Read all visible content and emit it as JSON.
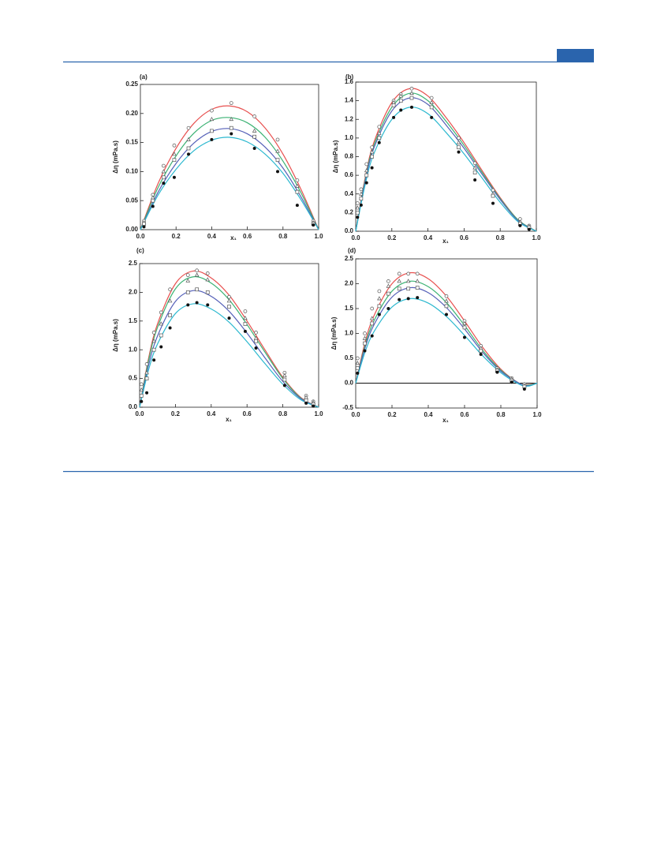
{
  "chart_data": [
    {
      "type": "scatter",
      "title": "(a)",
      "y_label": "Δη (mPa.s)",
      "x_label": "x₁",
      "xlim": [
        0,
        1
      ],
      "xticks": [
        {
          "value": 0,
          "label": "0.0"
        },
        0.2,
        0.4,
        0.6,
        0.8,
        {
          "value": 1,
          "label": "1.0"
        }
      ],
      "ylim": [
        0,
        0.25
      ],
      "yticks": [
        {
          "value": 0,
          "label": "0.00"
        },
        0.05,
        {
          "value": 0.1,
          "label": "0.10"
        },
        0.15,
        {
          "value": 0.2,
          "label": "0.20"
        },
        0.25
      ],
      "zero_line": false,
      "fit_x": [
        0,
        0.1,
        0.2,
        0.3,
        0.4,
        0.5,
        0.6,
        0.7,
        0.8,
        0.9,
        1
      ],
      "series": [
        {
          "color": "#e8504f",
          "marker": "circle-open",
          "x": [
            0.02,
            0.07,
            0.13,
            0.19,
            0.27,
            0.4,
            0.51,
            0.64,
            0.77,
            0.88,
            0.97
          ],
          "values": [
            0.015,
            0.06,
            0.11,
            0.145,
            0.175,
            0.205,
            0.218,
            0.195,
            0.155,
            0.085,
            0.015
          ],
          "fit_values": [
            0,
            0.08,
            0.14,
            0.183,
            0.207,
            0.213,
            0.203,
            0.175,
            0.13,
            0.07,
            0
          ]
        },
        {
          "color": "#3bb273",
          "marker": "triangle-open",
          "x": [
            0.02,
            0.07,
            0.13,
            0.19,
            0.27,
            0.4,
            0.51,
            0.64,
            0.77,
            0.88,
            0.97
          ],
          "values": [
            0.012,
            0.055,
            0.1,
            0.13,
            0.155,
            0.19,
            0.19,
            0.17,
            0.135,
            0.075,
            0.012
          ],
          "fit_values": [
            0,
            0.073,
            0.127,
            0.166,
            0.188,
            0.193,
            0.184,
            0.159,
            0.118,
            0.064,
            0
          ]
        },
        {
          "color": "#5560b8",
          "marker": "square-open",
          "x": [
            0.02,
            0.07,
            0.13,
            0.19,
            0.27,
            0.4,
            0.51,
            0.64,
            0.77,
            0.88,
            0.97
          ],
          "values": [
            0.01,
            0.05,
            0.09,
            0.12,
            0.14,
            0.17,
            0.175,
            0.16,
            0.12,
            0.065,
            0.01
          ],
          "fit_values": [
            0,
            0.065,
            0.114,
            0.149,
            0.169,
            0.174,
            0.165,
            0.142,
            0.106,
            0.057,
            0
          ]
        },
        {
          "color": "#2bb8cf",
          "marker": "circle-filled",
          "x": [
            0.02,
            0.07,
            0.13,
            0.19,
            0.27,
            0.4,
            0.51,
            0.64,
            0.77,
            0.88,
            0.97
          ],
          "values": [
            0.005,
            0.04,
            0.08,
            0.09,
            0.13,
            0.155,
            0.165,
            0.14,
            0.1,
            0.042,
            0.008
          ],
          "fit_values": [
            0,
            0.06,
            0.104,
            0.136,
            0.154,
            0.159,
            0.151,
            0.13,
            0.097,
            0.052,
            0
          ]
        }
      ]
    },
    {
      "type": "scatter",
      "title": "(b)",
      "y_label": "Δη (mPa.s)",
      "x_label": "x₁",
      "xlim": [
        0,
        1
      ],
      "xticks": [
        {
          "value": 0,
          "label": "0.0"
        },
        0.2,
        0.4,
        0.6,
        0.8,
        {
          "value": 1,
          "label": "1.0"
        }
      ],
      "ylim": [
        0,
        1.6
      ],
      "yticks": [
        {
          "value": 0,
          "label": "0.0"
        },
        0.2,
        0.4,
        0.6,
        0.8,
        {
          "value": 1,
          "label": "1.0"
        },
        1.2,
        1.4,
        1.6
      ],
      "zero_line": false,
      "fit_x": [
        0,
        0.05,
        0.1,
        0.2,
        0.3,
        0.4,
        0.5,
        0.6,
        0.7,
        0.8,
        0.9,
        1
      ],
      "series": [
        {
          "color": "#e8504f",
          "marker": "circle-open",
          "x": [
            0.01,
            0.03,
            0.06,
            0.09,
            0.13,
            0.21,
            0.25,
            0.31,
            0.42,
            0.57,
            0.66,
            0.76,
            0.91,
            0.96
          ],
          "values": [
            0.3,
            0.45,
            0.72,
            0.9,
            1.12,
            1.4,
            1.47,
            1.53,
            1.43,
            1.0,
            0.73,
            0.44,
            0.13,
            0.06
          ],
          "fit_values": [
            0,
            0.55,
            0.95,
            1.38,
            1.53,
            1.45,
            1.22,
            0.95,
            0.65,
            0.36,
            0.12,
            0
          ]
        },
        {
          "color": "#3bb273",
          "marker": "triangle-open",
          "x": [
            0.01,
            0.03,
            0.06,
            0.09,
            0.13,
            0.21,
            0.25,
            0.31,
            0.42,
            0.57,
            0.66,
            0.76,
            0.91,
            0.96
          ],
          "values": [
            0.25,
            0.4,
            0.65,
            0.85,
            1.05,
            1.38,
            1.45,
            1.48,
            1.38,
            0.95,
            0.68,
            0.4,
            0.1,
            0.05
          ],
          "fit_values": [
            0,
            0.53,
            0.92,
            1.33,
            1.48,
            1.4,
            1.18,
            0.92,
            0.63,
            0.35,
            0.12,
            0
          ]
        },
        {
          "color": "#5560b8",
          "marker": "square-open",
          "x": [
            0.01,
            0.03,
            0.06,
            0.09,
            0.13,
            0.21,
            0.25,
            0.31,
            0.42,
            0.57,
            0.66,
            0.76,
            0.91,
            0.96
          ],
          "values": [
            0.2,
            0.35,
            0.6,
            0.8,
            1.0,
            1.35,
            1.4,
            1.43,
            1.33,
            0.9,
            0.63,
            0.38,
            0.08,
            0.04
          ],
          "fit_values": [
            0,
            0.51,
            0.89,
            1.29,
            1.43,
            1.36,
            1.14,
            0.89,
            0.61,
            0.34,
            0.11,
            0
          ]
        },
        {
          "color": "#2bb8cf",
          "marker": "circle-filled",
          "x": [
            0.01,
            0.03,
            0.06,
            0.09,
            0.13,
            0.21,
            0.25,
            0.31,
            0.42,
            0.57,
            0.66,
            0.76,
            0.91,
            0.96
          ],
          "values": [
            0.15,
            0.28,
            0.52,
            0.68,
            0.95,
            1.22,
            1.3,
            1.33,
            1.22,
            0.85,
            0.55,
            0.3,
            0.06,
            0.02
          ],
          "fit_values": [
            0,
            0.48,
            0.83,
            1.2,
            1.33,
            1.26,
            1.06,
            0.83,
            0.57,
            0.31,
            0.1,
            0
          ]
        }
      ]
    },
    {
      "type": "scatter",
      "title": "(c)",
      "y_label": "Δη (mPa.s)",
      "x_label": "x₁",
      "xlim": [
        0,
        1
      ],
      "xticks": [
        {
          "value": 0,
          "label": "0.0"
        },
        0.2,
        0.4,
        0.6,
        0.8,
        {
          "value": 1,
          "label": "1.0"
        }
      ],
      "ylim": [
        0,
        2.5
      ],
      "yticks": [
        {
          "value": 0,
          "label": "0.0"
        },
        0.5,
        {
          "value": 1,
          "label": "1.0"
        },
        1.5,
        {
          "value": 2,
          "label": "2.0"
        },
        2.5
      ],
      "zero_line": false,
      "fit_x": [
        0,
        0.05,
        0.1,
        0.2,
        0.3,
        0.4,
        0.5,
        0.6,
        0.7,
        0.8,
        0.9,
        1
      ],
      "series": [
        {
          "color": "#e8504f",
          "marker": "circle-open",
          "x": [
            0.01,
            0.04,
            0.08,
            0.12,
            0.17,
            0.27,
            0.32,
            0.38,
            0.5,
            0.59,
            0.65,
            0.81,
            0.93,
            0.97
          ],
          "values": [
            0.4,
            0.75,
            1.3,
            1.65,
            2.05,
            2.3,
            2.38,
            2.33,
            1.92,
            1.67,
            1.3,
            0.6,
            0.2,
            0.1
          ],
          "fit_values": [
            0,
            0.85,
            1.45,
            2.15,
            2.37,
            2.25,
            1.95,
            1.5,
            1.0,
            0.52,
            0.17,
            0
          ]
        },
        {
          "color": "#3bb273",
          "marker": "triangle-open",
          "x": [
            0.01,
            0.04,
            0.08,
            0.12,
            0.17,
            0.27,
            0.32,
            0.38,
            0.5,
            0.59,
            0.65,
            0.81,
            0.93,
            0.97
          ],
          "values": [
            0.3,
            0.6,
            1.15,
            1.45,
            1.85,
            2.2,
            2.3,
            2.22,
            1.85,
            1.55,
            1.2,
            0.55,
            0.17,
            0.08
          ],
          "fit_values": [
            0,
            0.81,
            1.39,
            2.06,
            2.27,
            2.16,
            1.87,
            1.44,
            0.96,
            0.5,
            0.16,
            0
          ]
        },
        {
          "color": "#5560b8",
          "marker": "square-open",
          "x": [
            0.01,
            0.04,
            0.08,
            0.12,
            0.17,
            0.27,
            0.32,
            0.38,
            0.5,
            0.59,
            0.65,
            0.81,
            0.93,
            0.97
          ],
          "values": [
            0.2,
            0.5,
            1.0,
            1.25,
            1.6,
            2.0,
            2.05,
            2.0,
            1.75,
            1.45,
            1.15,
            0.48,
            0.12,
            0.05
          ],
          "fit_values": [
            0,
            0.73,
            1.24,
            1.84,
            2.03,
            1.93,
            1.67,
            1.29,
            0.86,
            0.45,
            0.15,
            0
          ]
        },
        {
          "color": "#2bb8cf",
          "marker": "circle-filled",
          "x": [
            0.01,
            0.04,
            0.08,
            0.12,
            0.17,
            0.27,
            0.32,
            0.38,
            0.5,
            0.59,
            0.65,
            0.81,
            0.93,
            0.97
          ],
          "values": [
            0.1,
            0.25,
            0.82,
            1.05,
            1.38,
            1.78,
            1.82,
            1.78,
            1.55,
            1.32,
            1.03,
            0.38,
            0.07,
            0.02
          ],
          "fit_values": [
            0,
            0.65,
            1.1,
            1.63,
            1.8,
            1.71,
            1.48,
            1.14,
            0.76,
            0.4,
            0.13,
            0
          ]
        }
      ]
    },
    {
      "type": "scatter",
      "title": "(d)",
      "y_label": "Δη (mPa.s)",
      "x_label": "x₁",
      "xlim": [
        0,
        1
      ],
      "xticks": [
        {
          "value": 0,
          "label": "0.0"
        },
        0.2,
        0.4,
        0.6,
        0.8,
        {
          "value": 1,
          "label": "1.0"
        }
      ],
      "ylim": [
        -0.5,
        2.5
      ],
      "yticks": [
        -0.5,
        {
          "value": 0,
          "label": "0.0"
        },
        0.5,
        {
          "value": 1,
          "label": "1.0"
        },
        1.5,
        {
          "value": 2,
          "label": "2.0"
        },
        2.5
      ],
      "zero_line": true,
      "fit_x": [
        0,
        0.05,
        0.1,
        0.2,
        0.3,
        0.4,
        0.5,
        0.6,
        0.7,
        0.8,
        0.9,
        0.95,
        1
      ],
      "series": [
        {
          "color": "#e8504f",
          "marker": "circle-open",
          "x": [
            0.01,
            0.05,
            0.09,
            0.13,
            0.18,
            0.24,
            0.29,
            0.34,
            0.5,
            0.6,
            0.69,
            0.78,
            0.86,
            0.93
          ],
          "values": [
            0.5,
            1.0,
            1.5,
            1.85,
            2.05,
            2.2,
            2.2,
            2.2,
            1.75,
            1.25,
            0.75,
            0.3,
            0.1,
            -0.02
          ],
          "fit_values": [
            0,
            0.8,
            1.35,
            2.0,
            2.22,
            2.1,
            1.75,
            1.25,
            0.72,
            0.28,
            0,
            -0.03,
            0
          ]
        },
        {
          "color": "#3bb273",
          "marker": "triangle-open",
          "x": [
            0.01,
            0.05,
            0.09,
            0.13,
            0.18,
            0.24,
            0.29,
            0.34,
            0.5,
            0.6,
            0.69,
            0.78,
            0.86,
            0.93
          ],
          "values": [
            0.4,
            0.9,
            1.3,
            1.7,
            1.95,
            2.05,
            2.05,
            2.05,
            1.65,
            1.2,
            0.7,
            0.27,
            0.08,
            -0.05
          ],
          "fit_values": [
            0,
            0.74,
            1.25,
            1.85,
            2.05,
            1.94,
            1.62,
            1.16,
            0.66,
            0.26,
            0,
            -0.04,
            0
          ]
        },
        {
          "color": "#5560b8",
          "marker": "square-open",
          "x": [
            0.01,
            0.05,
            0.09,
            0.13,
            0.18,
            0.24,
            0.29,
            0.34,
            0.5,
            0.6,
            0.69,
            0.78,
            0.86,
            0.93
          ],
          "values": [
            0.3,
            0.8,
            1.2,
            1.55,
            1.8,
            1.9,
            1.9,
            1.92,
            1.55,
            1.12,
            0.65,
            0.25,
            0.05,
            -0.07
          ],
          "fit_values": [
            0,
            0.69,
            1.17,
            1.73,
            1.92,
            1.82,
            1.52,
            1.09,
            0.62,
            0.24,
            0,
            -0.05,
            0
          ]
        },
        {
          "color": "#2bb8cf",
          "marker": "circle-filled",
          "x": [
            0.01,
            0.05,
            0.09,
            0.13,
            0.18,
            0.24,
            0.29,
            0.34,
            0.5,
            0.6,
            0.69,
            0.78,
            0.86,
            0.93
          ],
          "values": [
            0.2,
            0.65,
            0.95,
            1.38,
            1.5,
            1.68,
            1.7,
            1.72,
            1.38,
            0.92,
            0.58,
            0.22,
            0.02,
            -0.12
          ],
          "fit_values": [
            0,
            0.61,
            1.03,
            1.53,
            1.7,
            1.61,
            1.34,
            0.96,
            0.55,
            0.21,
            -0.02,
            -0.06,
            0
          ]
        }
      ]
    }
  ]
}
